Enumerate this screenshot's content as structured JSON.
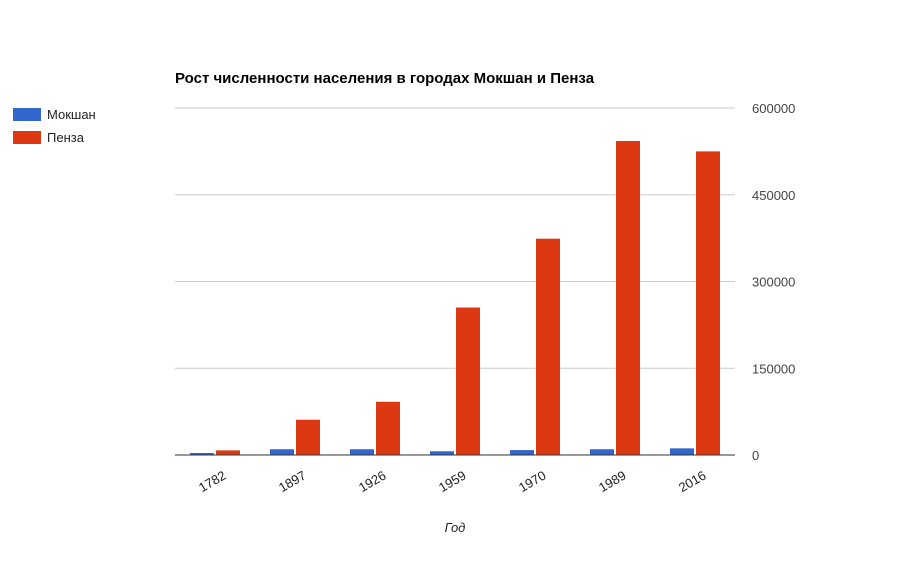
{
  "chart_data": {
    "type": "bar",
    "title": "Рост численности населения в городах Мокшан и Пенза",
    "xlabel": "Год",
    "ylabel": "",
    "categories": [
      "1782",
      "1897",
      "1926",
      "1959",
      "1970",
      "1989",
      "2016"
    ],
    "series": [
      {
        "name": "Мокшан",
        "color": "#3366cc",
        "values": [
          3500,
          10000,
          10000,
          6500,
          8500,
          10000,
          11500
        ]
      },
      {
        "name": "Пенза",
        "color": "#dc3912",
        "values": [
          8000,
          61000,
          92000,
          255000,
          374000,
          543000,
          525000
        ]
      }
    ],
    "ylim": [
      0,
      600000
    ],
    "yticks": [
      "0",
      "150000",
      "300000",
      "450000",
      "600000"
    ],
    "y_axis_position": "right",
    "grid": true,
    "legend": "left"
  }
}
